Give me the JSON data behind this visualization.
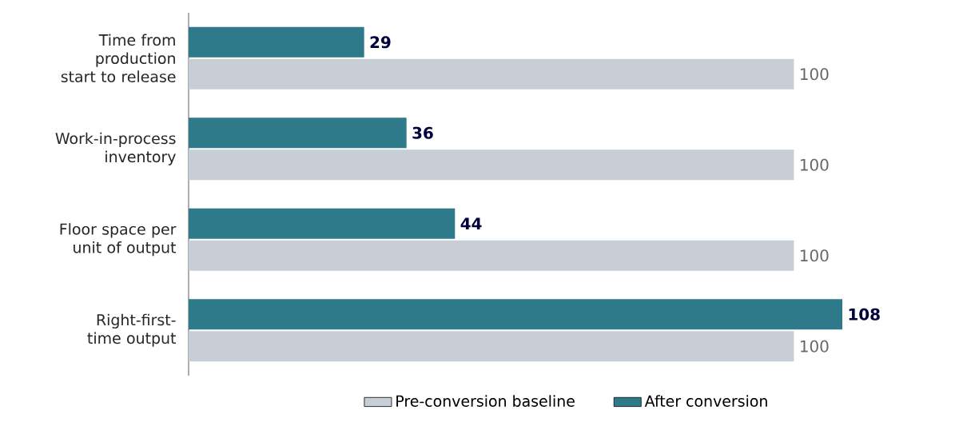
{
  "chart_data": {
    "type": "bar",
    "orientation": "horizontal",
    "categories": [
      "Time from production start to release",
      "Work-in-process inventory",
      "Floor space per unit of output",
      "Right-first-time output"
    ],
    "series": [
      {
        "name": "After conversion",
        "color": "#2e7a8a",
        "values": [
          29,
          36,
          44,
          108
        ]
      },
      {
        "name": "Pre-conversion baseline",
        "color": "#c7ced5",
        "values": [
          100,
          100,
          100,
          100
        ]
      }
    ],
    "data_labels": true,
    "legend": "bottom"
  }
}
